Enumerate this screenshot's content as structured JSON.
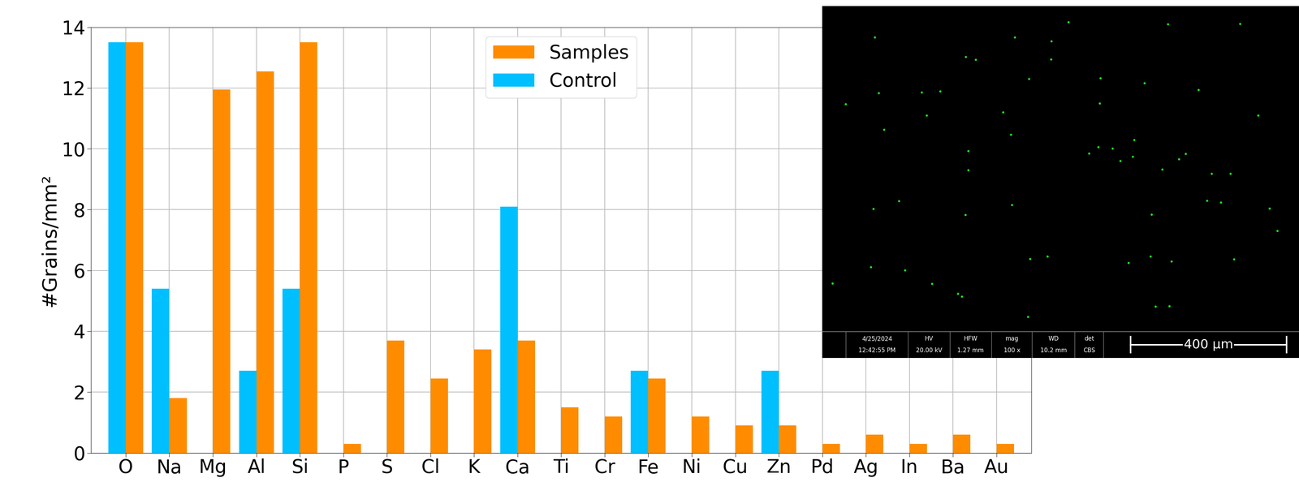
{
  "chart_data": {
    "type": "bar",
    "y_label": "#Grains/mm²",
    "categories": [
      "O",
      "Na",
      "Mg",
      "Al",
      "Si",
      "P",
      "S",
      "Cl",
      "K",
      "Ca",
      "Ti",
      "Cr",
      "Fe",
      "Ni",
      "Cu",
      "Zn",
      "Pd",
      "Ag",
      "In",
      "Ba",
      "Au"
    ],
    "series": [
      {
        "name": "Samples",
        "color": "#ff8c00",
        "values": [
          13.5,
          1.8,
          11.95,
          12.55,
          13.5,
          0.3,
          3.7,
          2.45,
          3.4,
          3.7,
          1.5,
          1.2,
          2.45,
          1.2,
          0.9,
          0.9,
          0.3,
          0.6,
          0.3,
          0.6,
          0.3
        ]
      },
      {
        "name": "Control",
        "color": "#00bfff",
        "values": [
          13.5,
          5.4,
          0,
          2.7,
          5.4,
          0,
          0,
          0,
          0,
          8.1,
          0,
          0,
          2.7,
          0,
          0,
          2.7,
          0,
          0,
          0,
          0,
          0
        ]
      }
    ],
    "ylim": [
      0,
      14
    ],
    "yticks": [
      0,
      2,
      4,
      6,
      8,
      10,
      12,
      14
    ],
    "grid": true,
    "legend": "upper center"
  },
  "inset_image": {
    "date": "4/25/2024",
    "time": "12:42:55 PM",
    "fields": [
      {
        "label": "HV",
        "value": "20.00 kV"
      },
      {
        "label": "HFW",
        "value": "1.27 mm"
      },
      {
        "label": "mag",
        "value": "100 x"
      },
      {
        "label": "WD",
        "value": "10.2 mm"
      },
      {
        "label": "det",
        "value": "CBS"
      }
    ],
    "scale_bar": "400 μm"
  }
}
